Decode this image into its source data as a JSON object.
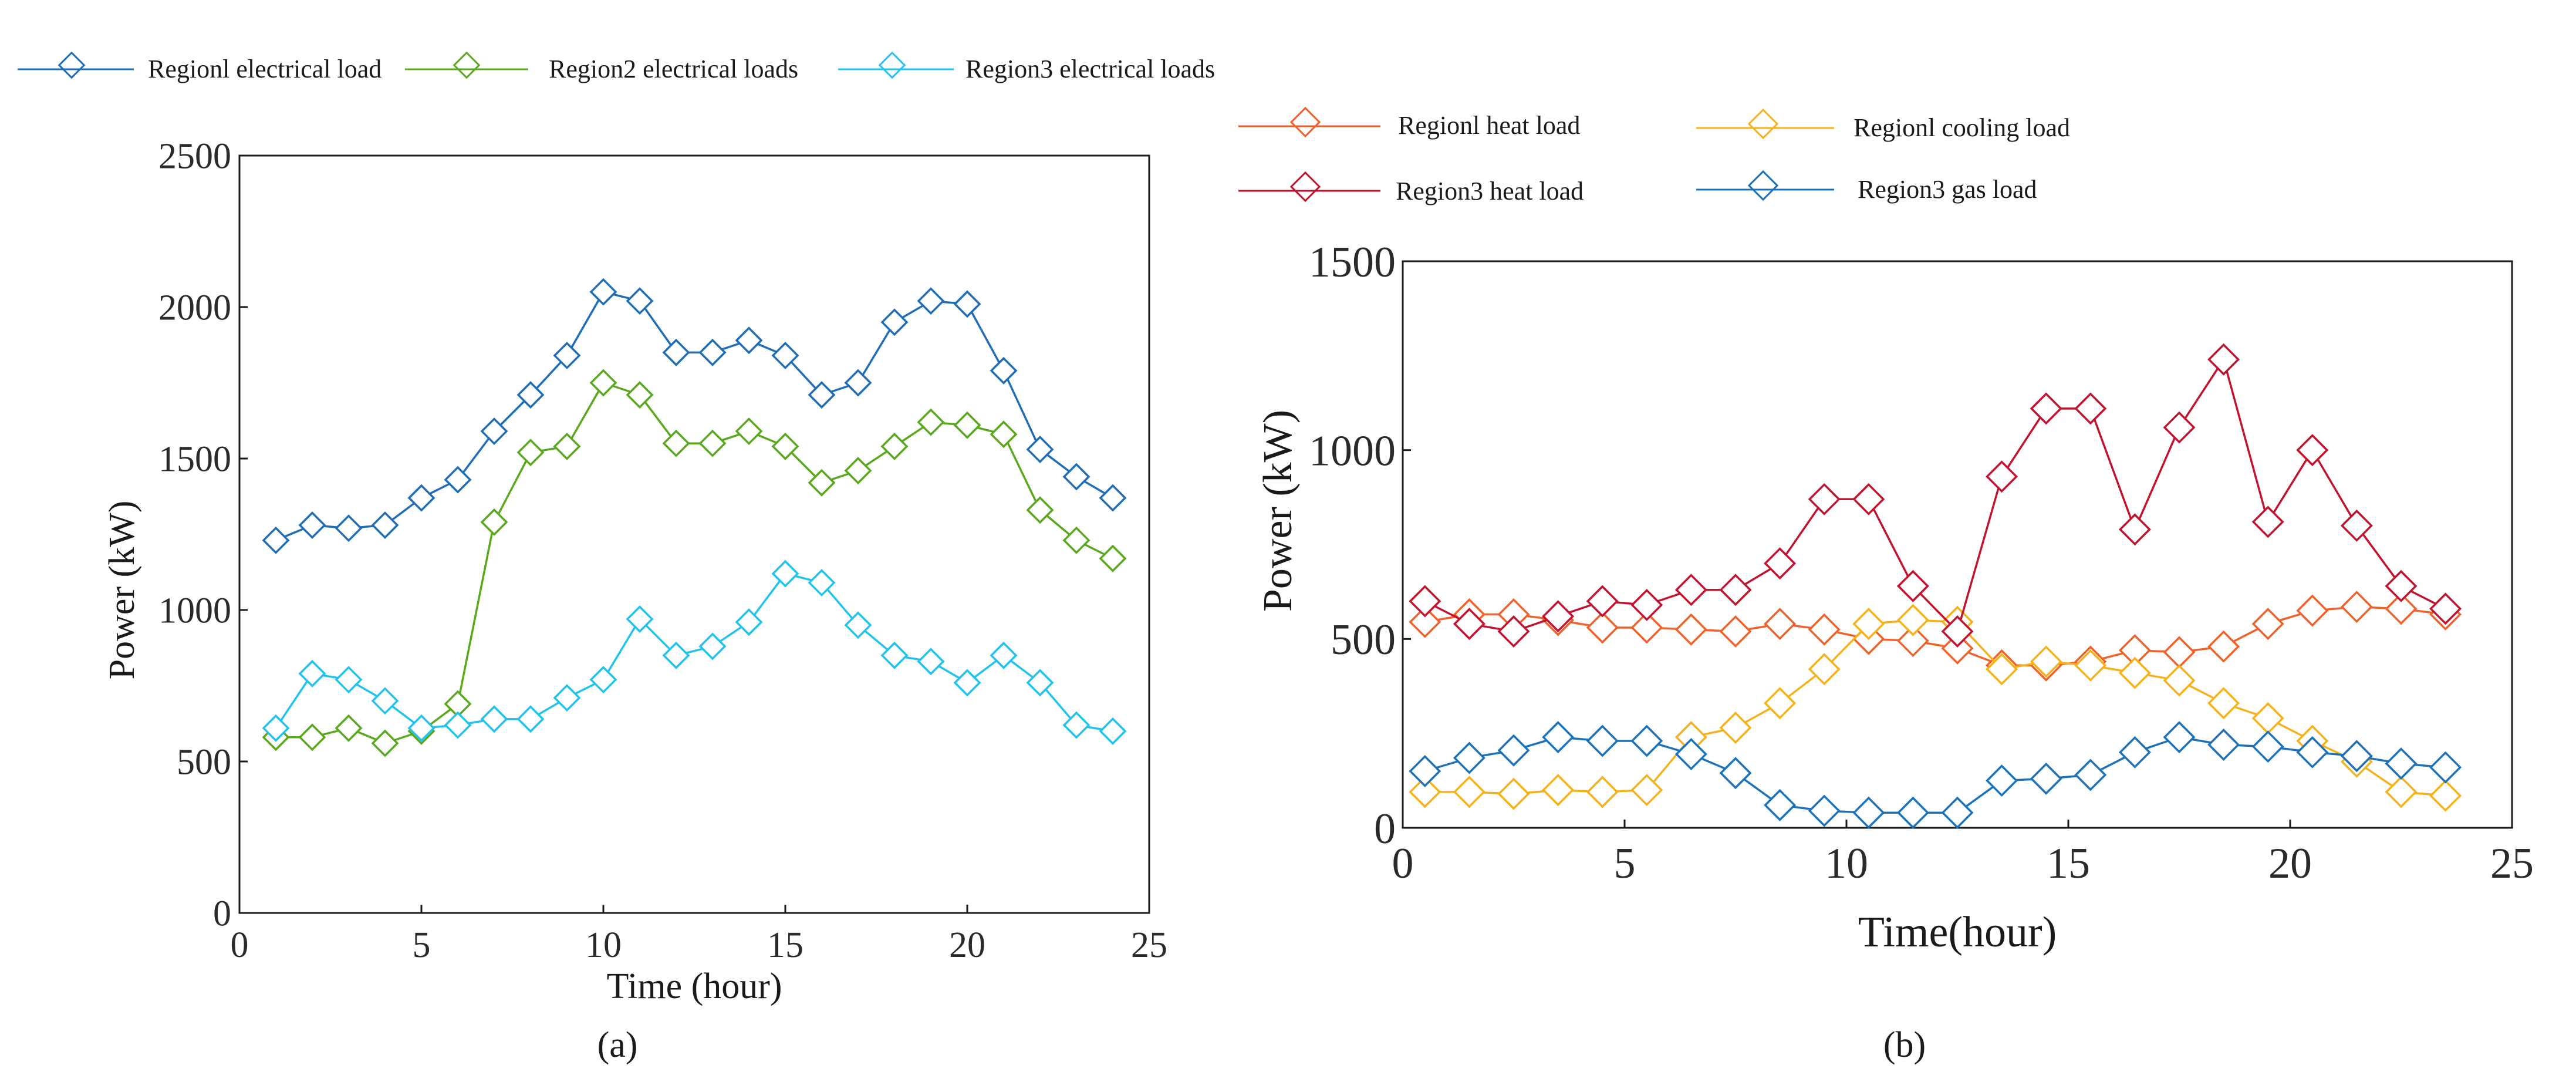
{
  "chart_data": [
    {
      "type": "line",
      "panel": "a",
      "caption": "(a)",
      "xlabel": "Time (hour)",
      "ylabel": "Power (kW)",
      "xlim": [
        0,
        25
      ],
      "ylim": [
        0,
        2500
      ],
      "xticks": [
        "0",
        "5",
        "10",
        "15",
        "20",
        "25"
      ],
      "yticks": [
        "0",
        "500",
        "1000",
        "1500",
        "2000",
        "2500"
      ],
      "x": [
        1,
        2,
        3,
        4,
        5,
        6,
        7,
        8,
        9,
        10,
        11,
        12,
        13,
        14,
        15,
        16,
        17,
        18,
        19,
        20,
        21,
        22,
        23,
        24
      ],
      "series": [
        {
          "name": "Regionl electrical load",
          "color": "#1f6db5",
          "values": [
            1230,
            1280,
            1270,
            1280,
            1370,
            1430,
            1590,
            1710,
            1840,
            2050,
            2020,
            1850,
            1850,
            1890,
            1840,
            1710,
            1750,
            1950,
            2020,
            2010,
            1790,
            1530,
            1440,
            1370
          ]
        },
        {
          "name": "Region2 electrical loads",
          "color": "#5aa81e",
          "values": [
            580,
            580,
            610,
            560,
            600,
            690,
            1290,
            1520,
            1540,
            1750,
            1710,
            1550,
            1550,
            1590,
            1540,
            1420,
            1460,
            1540,
            1620,
            1610,
            1580,
            1330,
            1230,
            1170
          ]
        },
        {
          "name": "Region3 electrical loads",
          "color": "#21c3ec",
          "values": [
            610,
            790,
            770,
            700,
            610,
            620,
            640,
            640,
            710,
            770,
            970,
            850,
            880,
            960,
            1120,
            1090,
            950,
            850,
            830,
            760,
            850,
            760,
            620,
            600
          ]
        }
      ]
    },
    {
      "type": "line",
      "panel": "b",
      "caption": "(b)",
      "xlabel": "Time(hour)",
      "ylabel": "Power (kW)",
      "xlim": [
        0,
        25
      ],
      "ylim": [
        0,
        1500
      ],
      "xticks": [
        "0",
        "5",
        "10",
        "15",
        "20",
        "25"
      ],
      "yticks": [
        "0",
        "500",
        "1000",
        "1500"
      ],
      "x": [
        0.5,
        1.5,
        2.5,
        3.5,
        4.5,
        5.5,
        6.5,
        7.5,
        8.5,
        9.5,
        10.5,
        11.5,
        12.5,
        13.5,
        14.5,
        15.5,
        16.5,
        17.5,
        18.5,
        19.5,
        20.5,
        21.5,
        22.5,
        23.5
      ],
      "series": [
        {
          "name": "Regionl  heat load",
          "color": "#f0622a",
          "values": [
            545,
            565,
            565,
            550,
            530,
            530,
            525,
            520,
            540,
            525,
            500,
            495,
            475,
            430,
            430,
            440,
            470,
            465,
            480,
            540,
            575,
            585,
            580,
            565
          ]
        },
        {
          "name": "Regionl   cooling load",
          "color": "#f5b21c",
          "values": [
            95,
            95,
            90,
            100,
            95,
            100,
            240,
            265,
            330,
            420,
            540,
            550,
            545,
            420,
            440,
            430,
            410,
            390,
            330,
            290,
            230,
            175,
            95,
            85
          ]
        },
        {
          "name": "Region3  heat load",
          "color": "#c0132f",
          "values": [
            600,
            540,
            520,
            560,
            600,
            590,
            630,
            630,
            700,
            870,
            870,
            640,
            520,
            930,
            1110,
            1110,
            790,
            1060,
            1240,
            810,
            1000,
            800,
            640,
            580
          ]
        },
        {
          "name": "Region3  gas load",
          "color": "#1b72b8",
          "values": [
            150,
            185,
            205,
            240,
            230,
            230,
            195,
            145,
            60,
            45,
            40,
            40,
            40,
            125,
            130,
            140,
            200,
            240,
            220,
            215,
            200,
            190,
            170,
            160
          ]
        }
      ]
    }
  ]
}
